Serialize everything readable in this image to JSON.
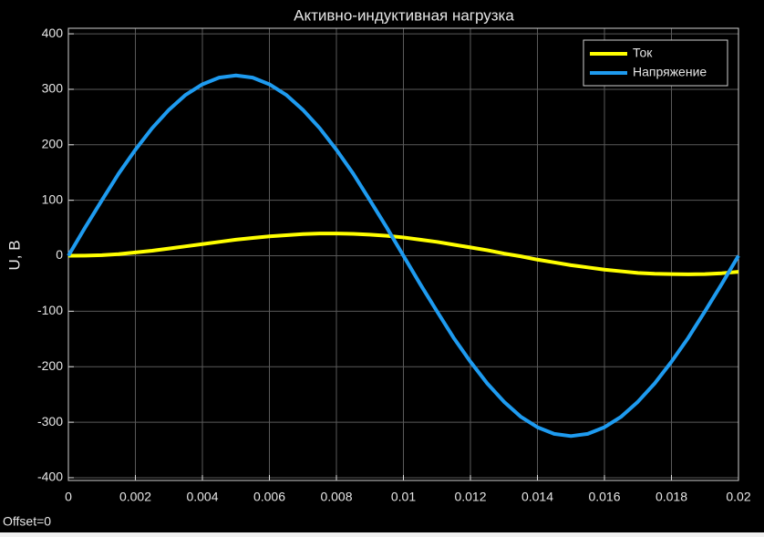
{
  "chart_data": {
    "type": "line",
    "title": "Активно-индуктивная нагрузка",
    "y_label": "U, B",
    "offset_label": "Offset=0",
    "x": [
      0,
      0.0005,
      0.001,
      0.0015,
      0.002,
      0.0025,
      0.003,
      0.0035,
      0.004,
      0.0045,
      0.005,
      0.0055,
      0.006,
      0.0065,
      0.007,
      0.0075,
      0.008,
      0.0085,
      0.009,
      0.0095,
      0.01,
      0.0105,
      0.011,
      0.0115,
      0.012,
      0.0125,
      0.013,
      0.0135,
      0.014,
      0.0145,
      0.015,
      0.0155,
      0.016,
      0.0165,
      0.017,
      0.0175,
      0.018,
      0.0185,
      0.019,
      0.0195,
      0.02
    ],
    "series": [
      {
        "name": "Ток",
        "color": "#ffff00",
        "values": [
          0,
          0.3,
          1,
          3,
          6,
          9,
          13,
          17,
          21,
          25,
          29,
          32,
          35,
          37,
          39,
          40,
          40,
          39.5,
          38,
          36,
          33,
          29,
          25,
          20,
          15,
          10,
          4,
          -1,
          -7,
          -12,
          -17,
          -21,
          -25,
          -28,
          -31,
          -32.5,
          -33,
          -33.5,
          -33,
          -31.5,
          -29
        ]
      },
      {
        "name": "Напряжение",
        "color": "#1e9bf0",
        "values": [
          0,
          51,
          100,
          148,
          191,
          230,
          263,
          290,
          309,
          321,
          325,
          321,
          309,
          290,
          263,
          230,
          191,
          148,
          100,
          51,
          0,
          -51,
          -100,
          -148,
          -191,
          -230,
          -263,
          -290,
          -309,
          -321,
          -325,
          -321,
          -309,
          -290,
          -263,
          -230,
          -191,
          -148,
          -100,
          -51,
          0
        ]
      }
    ],
    "xlim": [
      0,
      0.02
    ],
    "xticks": [
      0,
      0.002,
      0.004,
      0.006,
      0.008,
      0.01,
      0.012,
      0.014,
      0.016,
      0.018,
      0.02
    ],
    "ylim": [
      -405,
      410
    ],
    "yticks": [
      -400,
      -300,
      -200,
      -100,
      0,
      100,
      200,
      300,
      400
    ],
    "grid": true,
    "legend": "top-right"
  }
}
